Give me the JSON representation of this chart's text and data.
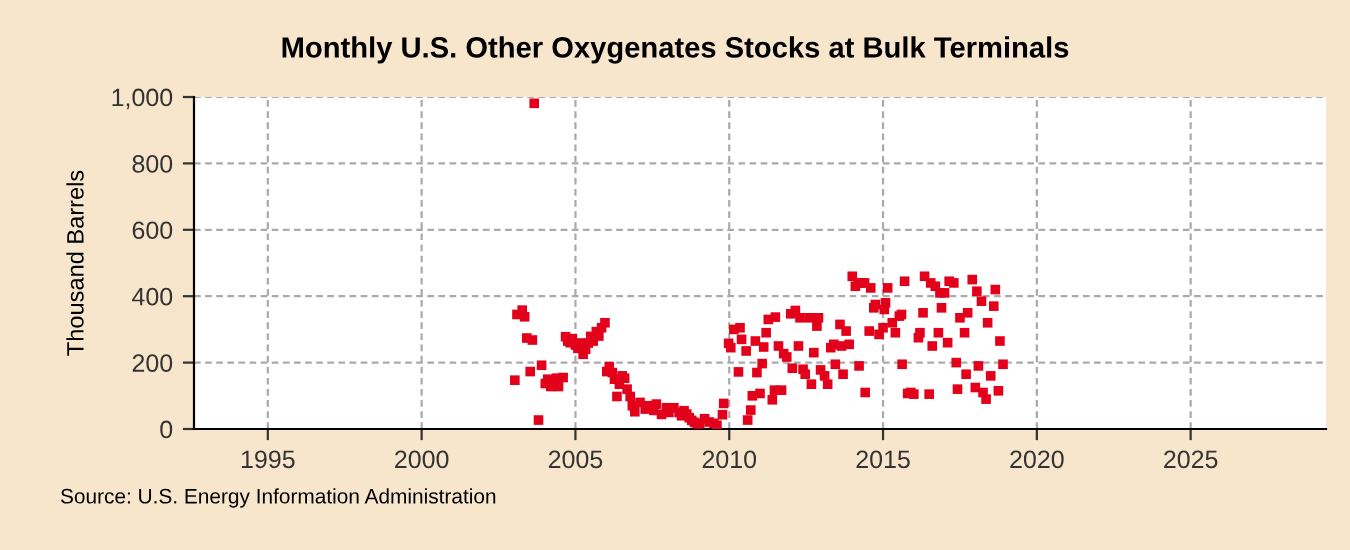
{
  "chart_data": {
    "type": "scatter",
    "title": "Monthly U.S. Other Oxygenates Stocks at Bulk Terminals",
    "ylabel": "Thousand Barrels",
    "x": [
      2003.03,
      2003.1,
      2003.27,
      2003.35,
      2003.42,
      2003.53,
      2003.6,
      2003.66,
      2003.8,
      2003.9,
      2004.02,
      2004.1,
      2004.2,
      2004.38,
      2004.45,
      2004.6,
      2004.68,
      2004.75,
      2004.83,
      2004.9,
      2005.0,
      2005.08,
      2005.16,
      2005.25,
      2005.33,
      2005.42,
      2005.5,
      2005.58,
      2005.68,
      2005.76,
      2005.85,
      2005.96,
      2006.02,
      2006.1,
      2006.2,
      2006.27,
      2006.35,
      2006.43,
      2006.52,
      2006.6,
      2006.68,
      2006.78,
      2006.85,
      2006.93,
      2007.1,
      2007.27,
      2007.39,
      2007.55,
      2007.63,
      2007.8,
      2007.96,
      2008.04,
      2008.2,
      2008.37,
      2008.45,
      2008.53,
      2008.62,
      2008.7,
      2008.78,
      2008.87,
      2008.96,
      2009.04,
      2009.2,
      2009.35,
      2009.5,
      2009.6,
      2009.78,
      2009.82,
      2009.98,
      2010.05,
      2010.15,
      2010.3,
      2010.35,
      2010.4,
      2010.55,
      2010.6,
      2010.7,
      2010.75,
      2010.85,
      2010.9,
      2011.0,
      2011.07,
      2011.12,
      2011.2,
      2011.27,
      2011.4,
      2011.47,
      2011.5,
      2011.6,
      2011.7,
      2011.77,
      2011.87,
      2012.0,
      2012.05,
      2012.15,
      2012.25,
      2012.3,
      2012.4,
      2012.47,
      2012.6,
      2012.67,
      2012.75,
      2012.85,
      2012.9,
      2012.97,
      2013.1,
      2013.2,
      2013.3,
      2013.4,
      2013.45,
      2013.6,
      2013.65,
      2013.7,
      2013.8,
      2013.9,
      2014.0,
      2014.1,
      2014.2,
      2014.22,
      2014.3,
      2014.4,
      2014.42,
      2014.55,
      2014.6,
      2014.7,
      2014.75,
      2014.87,
      2015.0,
      2015.04,
      2015.08,
      2015.15,
      2015.3,
      2015.4,
      2015.53,
      2015.6,
      2015.62,
      2015.7,
      2015.8,
      2015.9,
      2016.0,
      2016.15,
      2016.2,
      2016.3,
      2016.35,
      2016.5,
      2016.55,
      2016.6,
      2016.7,
      2016.8,
      2016.85,
      2016.9,
      2017.0,
      2017.1,
      2017.15,
      2017.3,
      2017.38,
      2017.42,
      2017.5,
      2017.65,
      2017.7,
      2017.75,
      2017.9,
      2018.0,
      2018.05,
      2018.1,
      2018.2,
      2018.25,
      2018.35,
      2018.4,
      2018.5,
      2018.6,
      2018.65,
      2018.75,
      2018.8,
      2018.9
    ],
    "values": [
      147,
      345,
      358,
      338,
      274,
      173,
      268,
      981,
      27,
      192,
      137,
      150,
      128,
      153,
      128,
      155,
      278,
      265,
      260,
      272,
      253,
      243,
      259,
      225,
      240,
      259,
      279,
      265,
      293,
      280,
      305,
      320,
      173,
      188,
      170,
      150,
      98,
      135,
      160,
      153,
      120,
      98,
      70,
      52,
      80,
      60,
      70,
      56,
      75,
      44,
      64,
      50,
      64,
      50,
      40,
      55,
      45,
      34,
      26,
      20,
      16,
      16,
      31,
      21,
      17,
      11,
      43,
      77,
      258,
      245,
      300,
      172,
      305,
      270,
      235,
      27,
      57,
      100,
      265,
      170,
      107,
      197,
      247,
      290,
      330,
      88,
      117,
      337,
      250,
      117,
      227,
      217,
      347,
      183,
      357,
      250,
      335,
      180,
      165,
      335,
      135,
      230,
      310,
      335,
      178,
      160,
      135,
      245,
      255,
      195,
      315,
      250,
      165,
      295,
      255,
      460,
      430,
      440,
      190,
      440,
      440,
      110,
      295,
      425,
      365,
      375,
      285,
      305,
      360,
      380,
      425,
      320,
      290,
      340,
      345,
      195,
      445,
      107,
      110,
      105,
      275,
      290,
      350,
      460,
      105,
      440,
      250,
      430,
      290,
      410,
      365,
      410,
      260,
      445,
      440,
      200,
      120,
      335,
      290,
      165,
      350,
      450,
      125,
      415,
      190,
      385,
      110,
      90,
      320,
      160,
      370,
      420,
      115,
      265,
      195
    ],
    "color": "#e3001b",
    "marker": "square",
    "xlim": [
      1992.6,
      2029.4
    ],
    "xticks": [
      1995,
      2000,
      2005,
      2010,
      2015,
      2020,
      2025
    ],
    "ylim": [
      0,
      1000
    ],
    "yticks": [
      0,
      200,
      400,
      600,
      800,
      {
        "value": 1000,
        "label": "1,000"
      }
    ],
    "grid": true,
    "legend": false,
    "annotations": [
      "Source: U.S. Energy Information Administration"
    ]
  }
}
